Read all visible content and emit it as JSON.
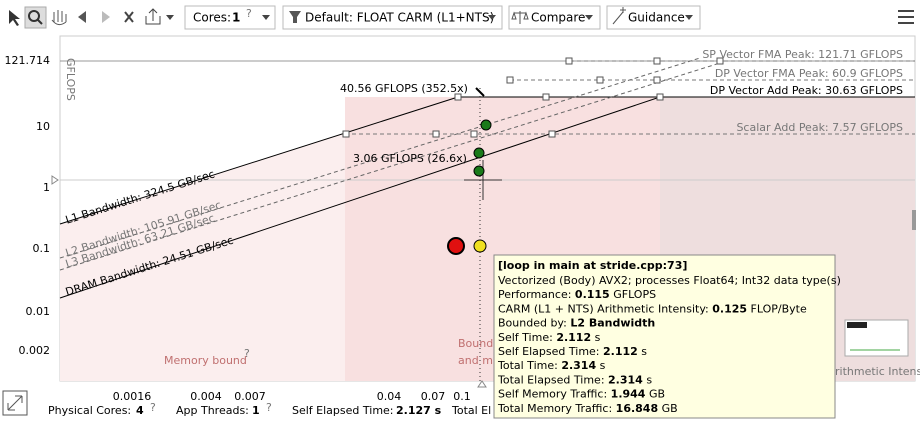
{
  "toolbar": {
    "cores_label": "Cores:",
    "cores_value": "1",
    "help": "?",
    "mode": "Default: FLOAT CARM (L1+NTS)",
    "compare": "Compare",
    "guidance": "Guidance"
  },
  "chart": {
    "y_axis_label": "GFLOPS",
    "yticks": [
      "121.714",
      "10",
      "1",
      "0.1",
      "0.01",
      "0.002"
    ],
    "xticks": [
      "0.0016",
      "0.004",
      "0.007",
      "0.04",
      "0.07",
      "0.1"
    ],
    "roofs": [
      "SP Vector FMA Peak: 121.71 GFLOPS",
      "DP Vector FMA Peak: 60.9 GFLOPS",
      "DP Vector Add Peak: 30.63 GFLOPS",
      "Scalar Add Peak: 7.57 GFLOPS"
    ],
    "bandwidths": [
      "L1 Bandwidth: 324.5 GB/sec",
      "L2 Bandwidth: 105.91 GB/sec",
      "L3 Bandwidth: 63.21 GB/sec",
      "DRAM Bandwidth: 24.51 GB/sec"
    ],
    "annotations": [
      "40.56 GFLOPS (352.5x)",
      "3.06 GFLOPS (26.6x)"
    ],
    "regions": [
      "Memory bound",
      "Bound",
      "and m"
    ],
    "x_axis_label_fragment": "rithmetic Intensity)"
  },
  "tooltip": {
    "title": "[loop in main at stride.cpp:73]",
    "lines": [
      [
        "Vectorized (Body) AVX2; processes Float64; Int32 data type(s)"
      ],
      [
        "Performance: ",
        "0.115",
        " GFLOPS"
      ],
      [
        "CARM (L1 + NTS) Arithmetic Intensity: ",
        "0.125",
        " FLOP/Byte"
      ],
      [
        "Bounded by: ",
        "L2 Bandwidth"
      ],
      [
        "Self Time: ",
        "2.112",
        " s"
      ],
      [
        "Self Elapsed Time: ",
        "2.112",
        " s"
      ],
      [
        "Total Time: ",
        "2.314",
        " s"
      ],
      [
        "Total Elapsed Time: ",
        "2.314",
        " s"
      ],
      [
        "Self Memory Traffic: ",
        "1.944",
        " GB"
      ],
      [
        "Total Memory Traffic: ",
        "16.848",
        " GB"
      ]
    ]
  },
  "status": {
    "physical_cores_label": "Physical Cores:",
    "physical_cores": "4",
    "app_threads_label": "App Threads:",
    "app_threads": "1",
    "self_elapsed_label": "Self Elapsed Time:",
    "self_elapsed": "2.127 s",
    "total_fragment": "Total El"
  }
}
